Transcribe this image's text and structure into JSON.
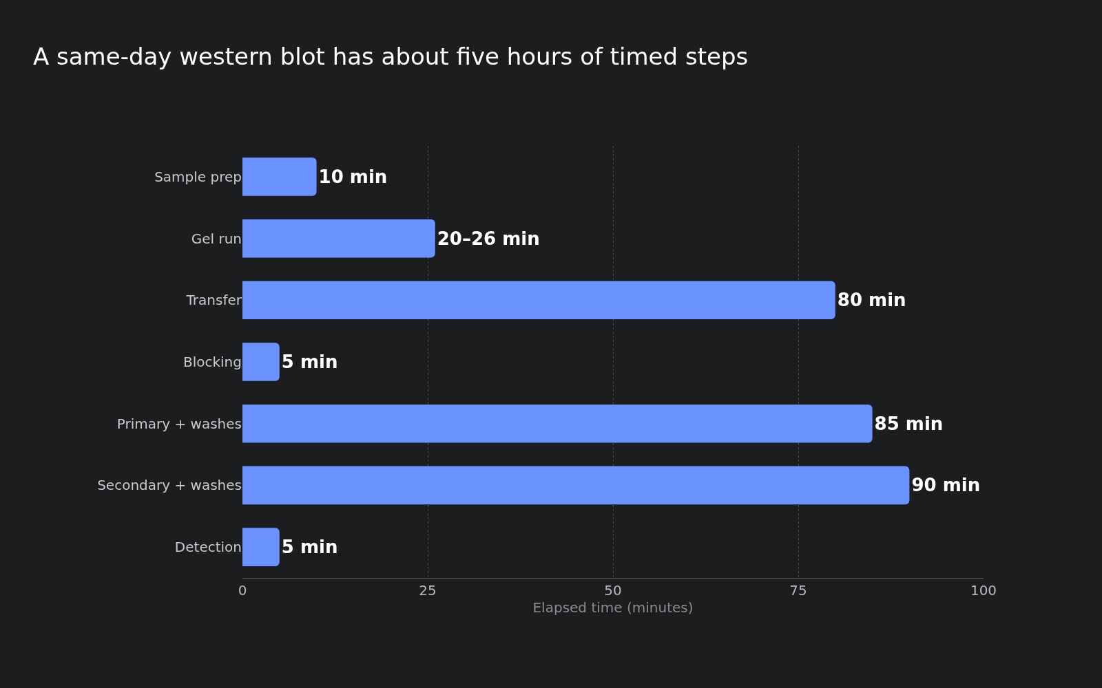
{
  "chart_data": {
    "type": "bar",
    "orientation": "horizontal",
    "title": "A same-day western blot has about five hours of timed steps",
    "xlabel": "Elapsed time (minutes)",
    "categories": [
      "Sample prep",
      "Gel run",
      "Transfer",
      "Blocking",
      "Primary + washes",
      "Secondary + washes",
      "Detection"
    ],
    "values": [
      10,
      26,
      80,
      5,
      85,
      90,
      5
    ],
    "value_labels": [
      "10 min",
      "20–26 min",
      "80 min",
      "5 min",
      "85 min",
      "90 min",
      "5 min"
    ],
    "color": "#6b93ff",
    "xlim": [
      0,
      100
    ],
    "xticks": [
      0,
      25,
      50,
      75,
      100
    ],
    "grid": "x"
  }
}
